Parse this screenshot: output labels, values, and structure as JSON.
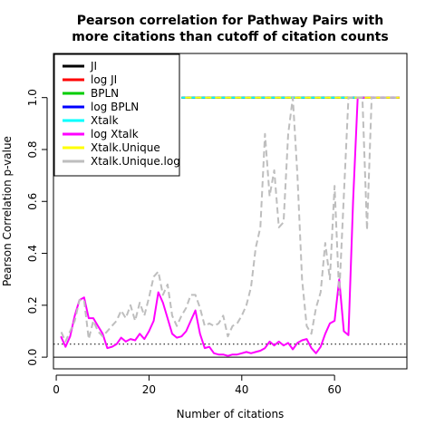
{
  "chart_data": {
    "type": "line",
    "title": [
      "Pearson correlation for Pathway Pairs with",
      "more citations than cutoff of citation counts"
    ],
    "xlabel": "Number of citations",
    "ylabel": "Pearson Correlation p-value",
    "xlim": [
      -0.6,
      75.6
    ],
    "ylim": [
      -0.045,
      1.17
    ],
    "xticks": [
      0,
      20,
      40,
      60
    ],
    "yticks": [
      0.0,
      0.2,
      0.4,
      0.6,
      0.8,
      1.0
    ],
    "ytick_labels": [
      "0.0",
      "0.2",
      "0.4",
      "0.6",
      "0.8",
      "1.0"
    ],
    "hlines": [
      {
        "y": 0.0,
        "style": "solid",
        "color": "#000000"
      },
      {
        "y": 0.05,
        "style": "dotted",
        "color": "#000000"
      }
    ],
    "legend": {
      "position": "top-left"
    },
    "series": [
      {
        "name": "JI",
        "color": "#000000",
        "dash": "solid",
        "width": 2,
        "x": [
          27,
          74
        ],
        "y": [
          1.0,
          1.0
        ]
      },
      {
        "name": "log JI",
        "color": "#ff0000",
        "dash": "dashed",
        "width": 2,
        "x": [
          27,
          74
        ],
        "y": [
          1.0,
          1.0
        ]
      },
      {
        "name": "BPLN",
        "color": "#00cd00",
        "dash": "dashed",
        "width": 2,
        "x": [
          27,
          74
        ],
        "y": [
          1.0,
          1.0
        ]
      },
      {
        "name": "log BPLN",
        "color": "#0000ff",
        "dash": "dashed",
        "width": 2,
        "x": [
          27,
          74
        ],
        "y": [
          1.0,
          1.0
        ]
      },
      {
        "name": "Xtalk",
        "color": "#00ffff",
        "dash": "dashed",
        "width": 2,
        "x": [
          27,
          74
        ],
        "y": [
          1.0,
          1.0
        ]
      },
      {
        "name": "log Xtalk",
        "color": "#ff00ff",
        "dash": "solid",
        "width": 2,
        "x": [
          1,
          2,
          3,
          4,
          5,
          6,
          7,
          8,
          9,
          10,
          11,
          12,
          13,
          14,
          15,
          16,
          17,
          18,
          19,
          20,
          21,
          22,
          23,
          24,
          25,
          26,
          27,
          28,
          29,
          30,
          31,
          32,
          33,
          34,
          35,
          36,
          37,
          38,
          39,
          40,
          41,
          42,
          43,
          44,
          45,
          46,
          47,
          48,
          49,
          50,
          51,
          52,
          53,
          54,
          55,
          56,
          57,
          58,
          59,
          60,
          61,
          62,
          63,
          64,
          65,
          66,
          67,
          68,
          69,
          70,
          71,
          72,
          73,
          74
        ],
        "y": [
          0.08,
          0.04,
          0.08,
          0.16,
          0.22,
          0.23,
          0.15,
          0.15,
          0.12,
          0.09,
          0.035,
          0.04,
          0.05,
          0.075,
          0.06,
          0.07,
          0.065,
          0.09,
          0.07,
          0.1,
          0.14,
          0.25,
          0.21,
          0.15,
          0.09,
          0.075,
          0.08,
          0.1,
          0.14,
          0.18,
          0.09,
          0.035,
          0.04,
          0.015,
          0.01,
          0.01,
          0.005,
          0.01,
          0.01,
          0.015,
          0.02,
          0.015,
          0.02,
          0.025,
          0.035,
          0.06,
          0.045,
          0.06,
          0.045,
          0.055,
          0.03,
          0.055,
          0.065,
          0.07,
          0.035,
          0.015,
          0.04,
          0.09,
          0.13,
          0.14,
          0.3,
          0.1,
          0.085,
          0.6,
          1.0,
          1.0,
          1.0,
          1.0,
          1.0,
          1.0,
          1.0,
          1.0,
          1.0,
          1.0
        ]
      },
      {
        "name": "Xtalk.Unique",
        "color": "#ffff00",
        "dash": "dashed",
        "width": 2,
        "x": [
          27,
          74
        ],
        "y": [
          1.0,
          1.0
        ]
      },
      {
        "name": "Xtalk.Unique.log",
        "color": "#bebebe",
        "dash": "dashed",
        "width": 2,
        "x": [
          1,
          2,
          3,
          4,
          5,
          6,
          7,
          8,
          9,
          10,
          11,
          12,
          13,
          14,
          15,
          16,
          17,
          18,
          19,
          20,
          21,
          22,
          23,
          24,
          25,
          26,
          27,
          28,
          29,
          30,
          31,
          32,
          33,
          34,
          35,
          36,
          37,
          38,
          39,
          40,
          41,
          42,
          43,
          44,
          45,
          46,
          47,
          48,
          49,
          50,
          51,
          52,
          53,
          54,
          55,
          56,
          57,
          58,
          59,
          60,
          61,
          62,
          63,
          64,
          65,
          66,
          67,
          68,
          69,
          70,
          71,
          72,
          73,
          74
        ],
        "y": [
          0.1,
          0.06,
          0.1,
          0.14,
          0.22,
          0.22,
          0.07,
          0.14,
          0.1,
          0.08,
          0.1,
          0.12,
          0.14,
          0.18,
          0.15,
          0.2,
          0.14,
          0.21,
          0.16,
          0.23,
          0.31,
          0.33,
          0.24,
          0.28,
          0.16,
          0.12,
          0.16,
          0.19,
          0.24,
          0.24,
          0.19,
          0.12,
          0.13,
          0.12,
          0.13,
          0.16,
          0.08,
          0.12,
          0.13,
          0.16,
          0.2,
          0.27,
          0.42,
          0.5,
          0.86,
          0.62,
          0.72,
          0.5,
          0.52,
          0.86,
          1.0,
          0.7,
          0.3,
          0.12,
          0.09,
          0.19,
          0.25,
          0.44,
          0.3,
          0.66,
          0.24,
          0.62,
          1.0,
          1.0,
          1.0,
          1.0,
          0.49,
          1.0,
          1.0,
          1.0,
          1.0,
          1.0,
          1.0,
          1.0
        ]
      }
    ]
  }
}
